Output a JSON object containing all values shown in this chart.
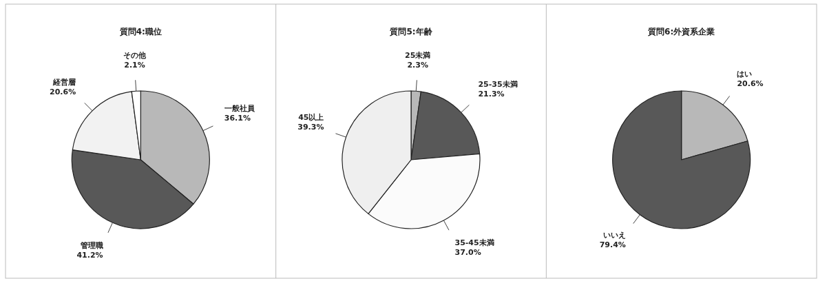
{
  "chart_data": [
    {
      "type": "pie",
      "title": "質問4:職位",
      "categories": [
        "一般社員",
        "管理職",
        "経営層",
        "その他"
      ],
      "values": [
        36.1,
        41.2,
        20.6,
        2.1
      ],
      "colors": [
        "#b8b8b8",
        "#585858",
        "#f2f2f2",
        "#ffffff"
      ],
      "value_labels": [
        "36.1%",
        "41.2%",
        "20.6%",
        "2.1%"
      ]
    },
    {
      "type": "pie",
      "title": "質問5:年齢",
      "categories": [
        "25未満",
        "25-35未満",
        "35-45未満",
        "45以上"
      ],
      "values": [
        2.3,
        21.3,
        37.0,
        39.3
      ],
      "colors": [
        "#b8b8b8",
        "#585858",
        "#fbfbfb",
        "#efefef"
      ],
      "value_labels": [
        "2.3%",
        "21.3%",
        "37.0%",
        "39.3%"
      ]
    },
    {
      "type": "pie",
      "title": "質問6:外資系企業",
      "categories": [
        "はい",
        "いいえ"
      ],
      "values": [
        20.6,
        79.4
      ],
      "colors": [
        "#b8b8b8",
        "#585858"
      ],
      "value_labels": [
        "20.6%",
        "79.4%"
      ]
    }
  ]
}
